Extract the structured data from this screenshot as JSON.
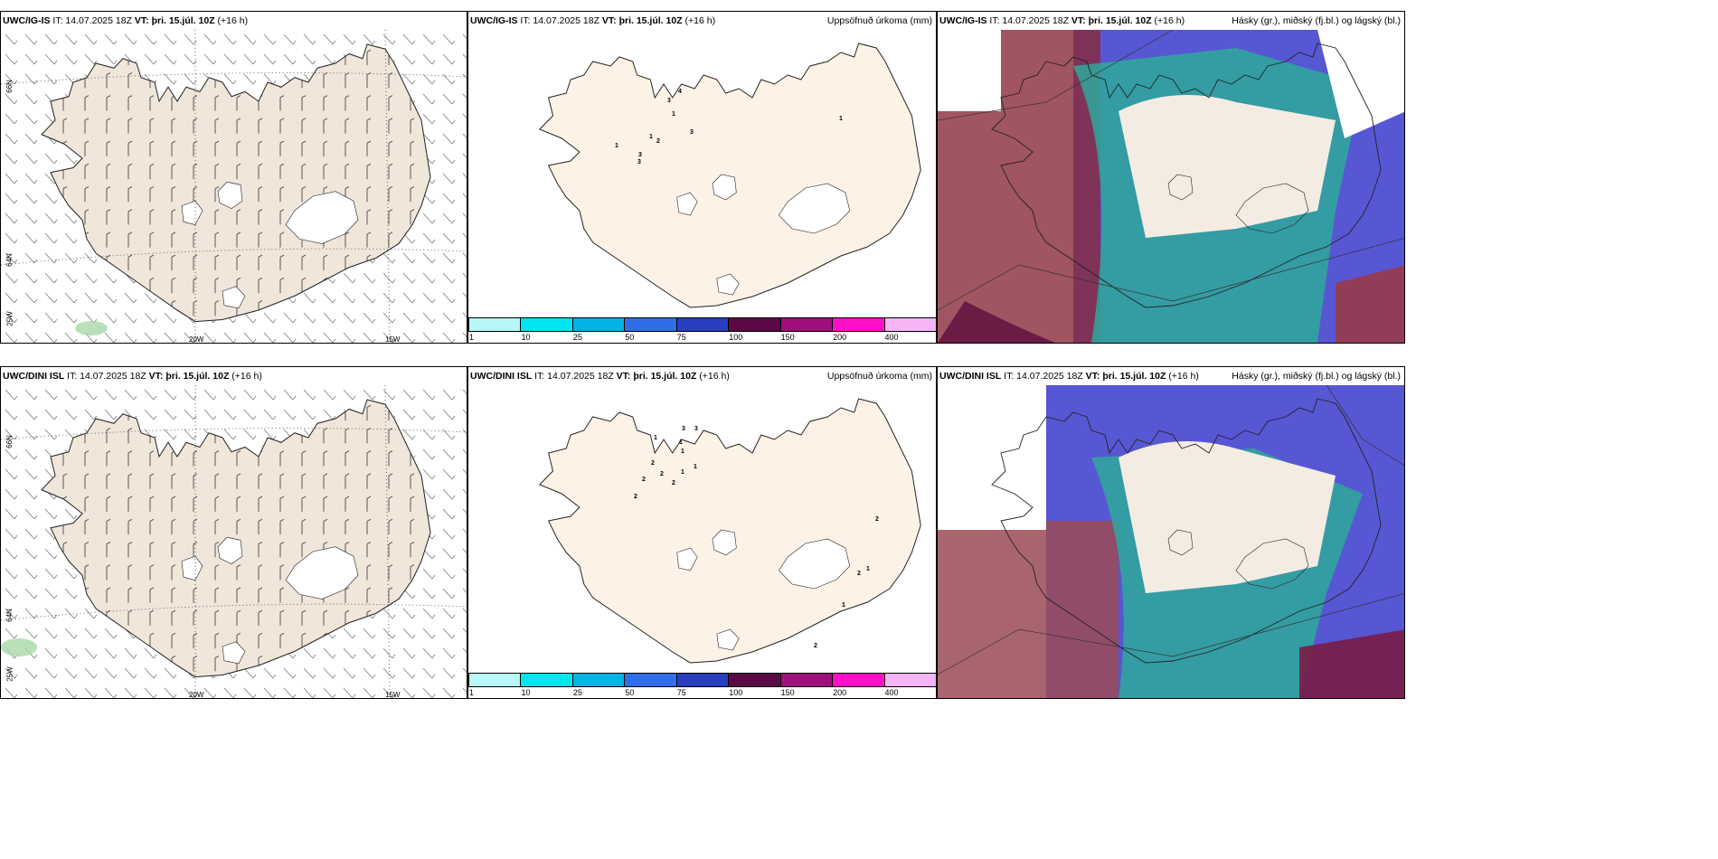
{
  "panels": [
    {
      "model": "UWC/IG-IS",
      "it": "IT: 14.07.2025 18Z",
      "vt": "VT: þri. 15.júl. 10Z",
      "lead": "(+16 h)",
      "title": ""
    },
    {
      "model": "UWC/IG-IS",
      "it": "IT: 14.07.2025 18Z",
      "vt": "VT: þri. 15.júl. 10Z",
      "lead": "(+16 h)",
      "title": "Uppsöfnuð úrkoma (mm)"
    },
    {
      "model": "UWC/IG-IS",
      "it": "IT: 14.07.2025 18Z",
      "vt": "VT: þri. 15.júl. 10Z",
      "lead": "(+16 h)",
      "title": "Hásky (gr.), miðský (fj.bl.) og lágský (bl.)"
    },
    {
      "model": "UWC/DINI ISL",
      "it": "IT: 14.07.2025 18Z",
      "vt": "VT: þri. 15.júl. 10Z",
      "lead": "(+16 h)",
      "title": ""
    },
    {
      "model": "UWC/DINI ISL",
      "it": "IT: 14.07.2025 18Z",
      "vt": "VT: þri. 15.júl. 10Z",
      "lead": "(+16 h)",
      "title": "Uppsöfnuð úrkoma (mm)"
    },
    {
      "model": "UWC/DINI ISL",
      "it": "IT: 14.07.2025 18Z",
      "vt": "VT: þri. 15.júl. 10Z",
      "lead": "(+16 h)",
      "title": "Hásky (gr.), miðský (fj.bl.) og lágský (bl.)"
    }
  ],
  "axis_labels": {
    "lat66": "66N",
    "lat64": "64N",
    "lon25": "25W",
    "lon20": "20W",
    "lon15": "15W"
  },
  "colorbar": {
    "colors": [
      "#b8f7f7",
      "#00e5f0",
      "#00b4e6",
      "#2f6ee8",
      "#2a3ec0",
      "#5c0a45",
      "#a0107a",
      "#ff10c8",
      "#f5b4f5"
    ],
    "ticks": [
      "1",
      "10",
      "25",
      "50",
      "75",
      "100",
      "150",
      "200",
      "400"
    ]
  },
  "precip_top": [
    "1",
    "3",
    "1",
    "3",
    "2",
    "3",
    "4",
    "1",
    "3",
    "1"
  ],
  "precip_bottom": [
    "1",
    "3",
    "3",
    "1",
    "1",
    "2",
    "1",
    "2",
    "2",
    "2",
    "1",
    "2",
    "2",
    "2",
    "1",
    "2",
    "1"
  ],
  "colors": {
    "land_wind": "#f0e6da",
    "land_precip": "#fdf2e6",
    "glacier": "#ffffff"
  }
}
